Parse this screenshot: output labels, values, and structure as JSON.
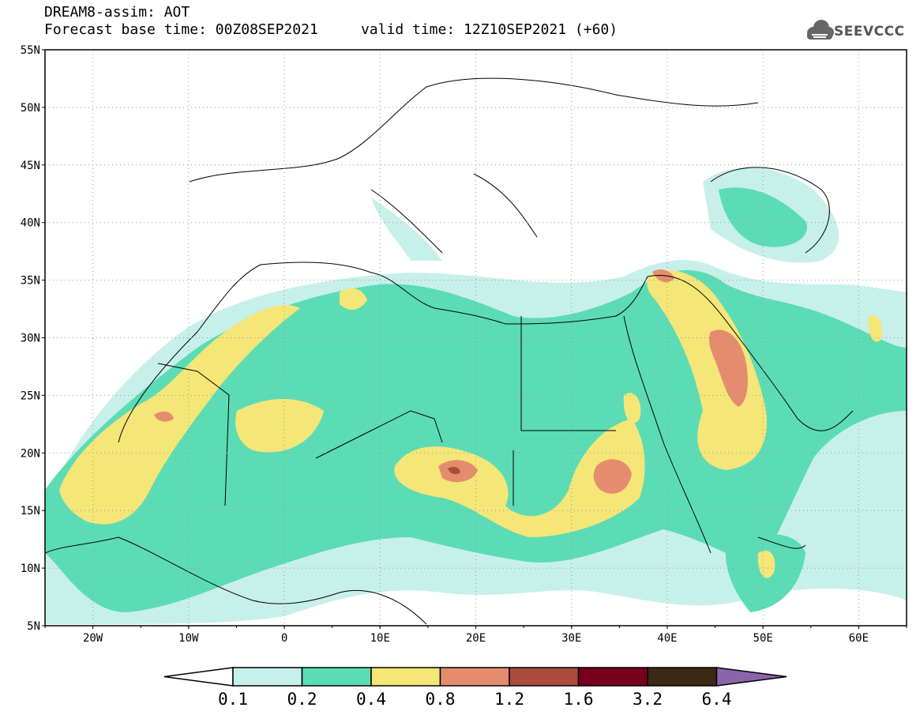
{
  "header": {
    "line1": "DREAM8-assim: AOT",
    "line2": "Forecast base time: 00Z08SEP2021     valid time: 12Z10SEP2021 (+60)"
  },
  "logo": {
    "text": "SEEVCCC",
    "icon": "cloud-icon"
  },
  "map": {
    "lon_range": [
      -25,
      65
    ],
    "lat_range": [
      5,
      55
    ],
    "lat_labels": [
      "55N",
      "50N",
      "45N",
      "40N",
      "35N",
      "30N",
      "25N",
      "20N",
      "15N",
      "10N",
      "5N"
    ],
    "lon_labels": [
      "20W",
      "10W",
      "0",
      "10E",
      "20E",
      "30E",
      "40E",
      "50E",
      "60E"
    ],
    "grid": "dotted"
  },
  "colorbar": {
    "colors": [
      "#ffffff",
      "#c8f0ea",
      "#5cdcb4",
      "#f5e678",
      "#e68c6e",
      "#aa4b3c",
      "#78001e",
      "#3c2814",
      "#8c64aa"
    ],
    "labels": [
      "0.1",
      "0.2",
      "0.4",
      "0.8",
      "1.2",
      "1.6",
      "3.2",
      "6.4"
    ]
  }
}
